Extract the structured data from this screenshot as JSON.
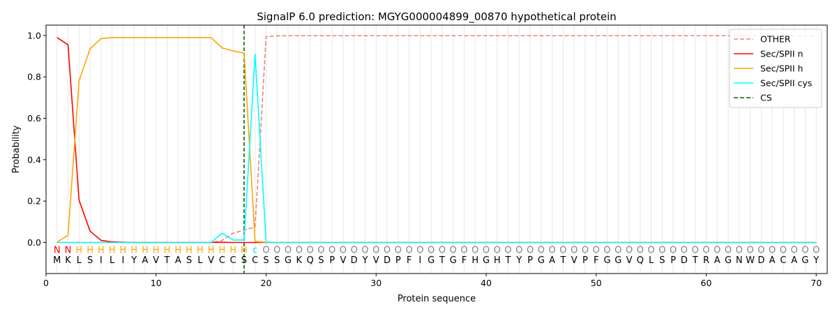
{
  "chart_data": {
    "type": "line",
    "title": "SignalP 6.0 prediction: MGYG000004899_00870 hypothetical protein",
    "xlabel": "Protein sequence",
    "ylabel": "Probability",
    "xlim": [
      0,
      71
    ],
    "ylim": [
      -0.15,
      1.05
    ],
    "xticks": [
      0,
      10,
      20,
      30,
      40,
      50,
      60,
      70
    ],
    "yticks": [
      0.0,
      0.2,
      0.4,
      0.6,
      0.8,
      1.0
    ],
    "ytick_labels": [
      "0.0",
      "0.2",
      "0.4",
      "0.6",
      "0.8",
      "1.0"
    ],
    "grid": "vertical lines at each residue",
    "legend_position": "top-right",
    "sequence": [
      "M",
      "K",
      "L",
      "S",
      "I",
      "L",
      "I",
      "Y",
      "A",
      "V",
      "T",
      "A",
      "S",
      "L",
      "V",
      "C",
      "C",
      "S",
      "C",
      "S",
      "S",
      "G",
      "K",
      "Q",
      "S",
      "P",
      "V",
      "D",
      "Y",
      "V",
      "D",
      "P",
      "F",
      "I",
      "G",
      "T",
      "G",
      "F",
      "H",
      "G",
      "H",
      "T",
      "Y",
      "P",
      "G",
      "A",
      "T",
      "V",
      "P",
      "F",
      "G",
      "G",
      "V",
      "Q",
      "L",
      "S",
      "P",
      "D",
      "T",
      "R",
      "A",
      "G",
      "N",
      "W",
      "D",
      "A",
      "C",
      "A",
      "G",
      "Y"
    ],
    "labels": [
      "N",
      "N",
      "H",
      "H",
      "H",
      "H",
      "H",
      "H",
      "H",
      "H",
      "H",
      "H",
      "H",
      "H",
      "H",
      "H",
      "H",
      "H",
      "c",
      "O",
      "O",
      "O",
      "O",
      "O",
      "O",
      "O",
      "O",
      "O",
      "O",
      "O",
      "O",
      "O",
      "O",
      "O",
      "O",
      "O",
      "O",
      "O",
      "O",
      "O",
      "O",
      "O",
      "O",
      "O",
      "O",
      "O",
      "O",
      "O",
      "O",
      "O",
      "O",
      "O",
      "O",
      "O",
      "O",
      "O",
      "O",
      "O",
      "O",
      "O",
      "O",
      "O",
      "O",
      "O",
      "O",
      "O",
      "O",
      "O",
      "O",
      "O"
    ],
    "label_colors": {
      "N": "#ff0000",
      "H": "#ffa500",
      "c": "#00e5e5",
      "O": "#808080"
    },
    "cleavage_site": 18,
    "series": [
      {
        "name": "OTHER",
        "color": "#f08080",
        "style": "dashed",
        "values": [
          0,
          0,
          0,
          0,
          0,
          0,
          0,
          0,
          0,
          0,
          0,
          0,
          0,
          0,
          0,
          0.01,
          0.045,
          0.06,
          0.075,
          0.995,
          0.998,
          0.999,
          0.999,
          0.999,
          0.999,
          0.999,
          0.999,
          0.999,
          0.999,
          0.999,
          0.999,
          0.999,
          0.999,
          0.999,
          0.999,
          0.999,
          0.999,
          0.999,
          0.999,
          0.999,
          0.999,
          0.999,
          0.999,
          0.999,
          0.999,
          0.999,
          0.999,
          0.999,
          0.999,
          0.999,
          0.999,
          0.999,
          0.999,
          0.999,
          0.999,
          0.999,
          0.999,
          0.999,
          0.999,
          0.999,
          0.999,
          0.999,
          0.999,
          0.999,
          0.999,
          0.999,
          0.999,
          0.999,
          0.999,
          0.999
        ]
      },
      {
        "name": "Sec/SPII n",
        "color": "#ff0000",
        "style": "solid",
        "values": [
          0.99,
          0.955,
          0.205,
          0.055,
          0.01,
          0.003,
          0.001,
          0,
          0,
          0,
          0,
          0,
          0,
          0,
          0,
          0.001,
          0,
          0,
          0,
          0,
          0,
          0,
          0,
          0,
          0,
          0,
          0,
          0,
          0,
          0,
          0,
          0,
          0,
          0,
          0,
          0,
          0,
          0,
          0,
          0,
          0,
          0,
          0,
          0,
          0,
          0,
          0,
          0,
          0,
          0,
          0,
          0,
          0,
          0,
          0,
          0,
          0,
          0,
          0,
          0,
          0,
          0,
          0,
          0,
          0,
          0,
          0,
          0,
          0,
          0
        ]
      },
      {
        "name": "Sec/SPII h",
        "color": "#ffa500",
        "style": "solid",
        "values": [
          0.002,
          0.035,
          0.78,
          0.935,
          0.985,
          0.99,
          0.99,
          0.99,
          0.99,
          0.99,
          0.99,
          0.99,
          0.99,
          0.99,
          0.99,
          0.94,
          0.925,
          0.915,
          0.005,
          0.001,
          0,
          0,
          0,
          0,
          0,
          0,
          0,
          0,
          0,
          0,
          0,
          0,
          0,
          0,
          0,
          0,
          0,
          0,
          0,
          0,
          0,
          0,
          0,
          0,
          0,
          0,
          0,
          0,
          0,
          0,
          0,
          0,
          0,
          0,
          0,
          0,
          0,
          0,
          0,
          0,
          0,
          0,
          0,
          0,
          0,
          0,
          0,
          0,
          0,
          0
        ]
      },
      {
        "name": "Sec/SPII cys",
        "color": "#00ffff",
        "style": "solid",
        "values": [
          0,
          0,
          0,
          0,
          0,
          0,
          0,
          0,
          0,
          0,
          0,
          0,
          0,
          0,
          0,
          0.045,
          0.012,
          0.012,
          0.91,
          0.002,
          0,
          0,
          0,
          0,
          0,
          0,
          0,
          0,
          0,
          0,
          0,
          0,
          0,
          0,
          0,
          0,
          0,
          0,
          0,
          0,
          0,
          0,
          0,
          0,
          0,
          0,
          0,
          0,
          0,
          0,
          0,
          0,
          0,
          0,
          0,
          0,
          0,
          0,
          0,
          0,
          0,
          0,
          0,
          0,
          0,
          0,
          0,
          0,
          0,
          0
        ]
      },
      {
        "name": "CS",
        "color": "#006400",
        "style": "dashed",
        "kind": "vline"
      }
    ]
  }
}
